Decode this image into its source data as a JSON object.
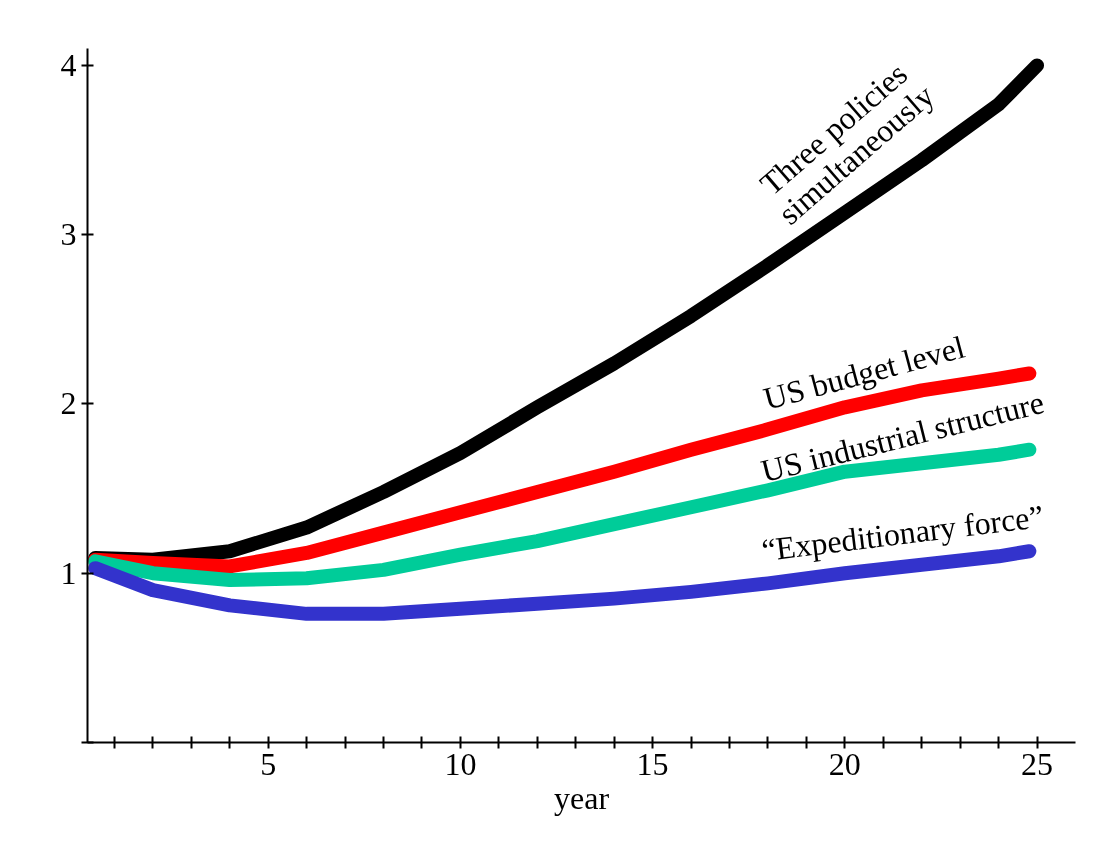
{
  "chart_data": {
    "type": "line",
    "xlabel": "year",
    "x": [
      0.5,
      2,
      4,
      6,
      8,
      10,
      12,
      14,
      16,
      18,
      20,
      22,
      24,
      24.8
    ],
    "series": [
      {
        "name": "Three policies\nsimultaneously",
        "color": "#000000",
        "x": [
          0.5,
          2,
          4,
          6,
          8,
          10,
          12,
          14,
          16,
          18,
          20,
          22,
          24,
          25
        ],
        "values": [
          1.09,
          1.08,
          1.13,
          1.27,
          1.48,
          1.71,
          1.98,
          2.24,
          2.52,
          2.82,
          3.13,
          3.44,
          3.77,
          4.0
        ]
      },
      {
        "name": "US budget level",
        "color": "#ff0000",
        "values": [
          1.08,
          1.06,
          1.04,
          1.12,
          1.24,
          1.36,
          1.48,
          1.6,
          1.73,
          1.85,
          1.98,
          2.08,
          2.15,
          2.18
        ]
      },
      {
        "name": "US industrial structure",
        "color": "#00cc99",
        "values": [
          1.07,
          1.0,
          0.96,
          0.97,
          1.02,
          1.11,
          1.19,
          1.29,
          1.39,
          1.49,
          1.6,
          1.65,
          1.7,
          1.73
        ]
      },
      {
        "name": "“Expeditionary force”",
        "color": "#3333cc",
        "values": [
          1.03,
          0.9,
          0.81,
          0.76,
          0.76,
          0.79,
          0.82,
          0.85,
          0.89,
          0.94,
          1.0,
          1.05,
          1.1,
          1.13
        ]
      }
    ],
    "xlim": [
      0.3,
      26
    ],
    "ylim": [
      0,
      4.1
    ],
    "xticks": [
      {
        "value": 1,
        "label": null
      },
      {
        "value": 2,
        "label": null
      },
      {
        "value": 3,
        "label": null
      },
      {
        "value": 4,
        "label": null
      },
      5,
      {
        "value": 6,
        "label": null
      },
      {
        "value": 7,
        "label": null
      },
      {
        "value": 8,
        "label": null
      },
      {
        "value": 9,
        "label": null
      },
      10,
      {
        "value": 11,
        "label": null
      },
      {
        "value": 12,
        "label": null
      },
      {
        "value": 13,
        "label": null
      },
      {
        "value": 14,
        "label": null
      },
      15,
      {
        "value": 16,
        "label": null
      },
      {
        "value": 17,
        "label": null
      },
      {
        "value": 18,
        "label": null
      },
      {
        "value": 19,
        "label": null
      },
      20,
      {
        "value": 21,
        "label": null
      },
      {
        "value": 22,
        "label": null
      },
      {
        "value": 23,
        "label": null
      },
      {
        "value": 24,
        "label": null
      },
      25
    ],
    "yticks": [
      {
        "value": 0,
        "label": null
      },
      1,
      2,
      3,
      4
    ],
    "grid": false,
    "marker": "none",
    "line_style": "solid"
  }
}
